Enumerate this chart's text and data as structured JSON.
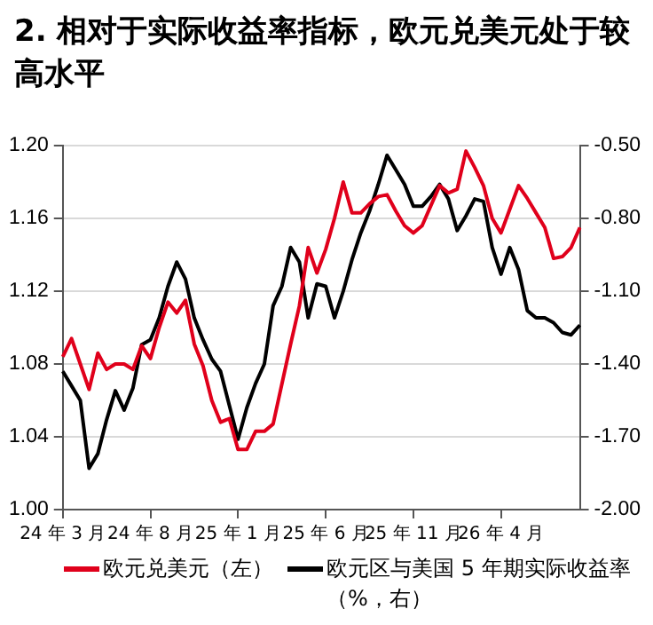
{
  "chart_data": {
    "type": "line",
    "title": "2. 相对于实际收益率指标，欧元兑美元处于较高水平",
    "categories": [
      "24 年 3 月",
      null,
      null,
      null,
      null,
      null,
      null,
      null,
      null,
      null,
      "24 年 8 月",
      null,
      null,
      null,
      null,
      null,
      null,
      null,
      null,
      null,
      "25 年 1 月",
      null,
      null,
      null,
      null,
      null,
      null,
      null,
      null,
      null,
      "25 年 6 月",
      null,
      null,
      null,
      null,
      null,
      null,
      null,
      null,
      null,
      "25 年 11 月",
      null,
      null,
      null,
      null,
      null,
      null,
      null,
      null,
      null,
      "26 年 4 月",
      null,
      null,
      null,
      null,
      null,
      null,
      null,
      null,
      null
    ],
    "ylim": [
      1.0,
      1.2
    ],
    "yticks": [
      {
        "value": 1.0,
        "label": "1.00"
      },
      {
        "value": 1.04,
        "label": "1.04"
      },
      {
        "value": 1.08,
        "label": "1.08"
      },
      {
        "value": 1.12,
        "label": "1.12"
      },
      {
        "value": 1.16,
        "label": "1.16"
      },
      {
        "value": 1.2,
        "label": "1.20"
      }
    ],
    "y2lim": [
      -2.0,
      -0.5
    ],
    "y2ticks": [
      {
        "value": -2.0,
        "label": "-2.00"
      },
      {
        "value": -1.7,
        "label": "-1.70"
      },
      {
        "value": -1.4,
        "label": "-1.40"
      },
      {
        "value": -1.1,
        "label": "-1.10"
      },
      {
        "value": -0.8,
        "label": "-0.80"
      },
      {
        "value": -0.5,
        "label": "-0.50"
      }
    ],
    "grid": "y",
    "legend": "bottom",
    "series": [
      {
        "name": "欧元兑美元（左）",
        "color": "#e0001b",
        "values": [
          1.084,
          1.094,
          1.08,
          1.066,
          1.086,
          1.077,
          1.08,
          1.08,
          1.077,
          1.09,
          1.083,
          1.1,
          1.114,
          1.108,
          1.115,
          1.091,
          1.079,
          1.06,
          1.048,
          1.05,
          1.033,
          1.033,
          1.043,
          1.043,
          1.047,
          1.069,
          1.091,
          1.112,
          1.144,
          1.13,
          1.143,
          1.16,
          1.18,
          1.163,
          1.163,
          1.168,
          1.172,
          1.173,
          1.164,
          1.156,
          1.152,
          1.156,
          1.167,
          1.178,
          1.174,
          1.176,
          1.197,
          1.188,
          1.178,
          1.16,
          1.152,
          1.165,
          1.178,
          1.171,
          1.163,
          1.155,
          1.138,
          1.139,
          1.144,
          1.155
        ]
      },
      {
        "name": "欧元区与美国 5 年期实际收益率（%，右）",
        "color": "#000000",
        "axis": "y2",
        "values": [
          -1.43,
          -1.49,
          -1.55,
          -1.83,
          -1.77,
          -1.63,
          -1.51,
          -1.59,
          -1.5,
          -1.32,
          -1.3,
          -1.21,
          -1.08,
          -0.98,
          -1.05,
          -1.21,
          -1.3,
          -1.38,
          -1.43,
          -1.57,
          -1.71,
          -1.58,
          -1.48,
          -1.4,
          -1.16,
          -1.08,
          -0.92,
          -0.98,
          -1.21,
          -1.07,
          -1.08,
          -1.21,
          -1.1,
          -0.97,
          -0.86,
          -0.77,
          -0.66,
          -0.54,
          -0.6,
          -0.66,
          -0.75,
          -0.75,
          -0.71,
          -0.66,
          -0.72,
          -0.85,
          -0.79,
          -0.72,
          -0.73,
          -0.92,
          -1.03,
          -0.92,
          -1.01,
          -1.18,
          -1.21,
          -1.21,
          -1.23,
          -1.27,
          -1.28,
          -1.24
        ]
      }
    ]
  }
}
